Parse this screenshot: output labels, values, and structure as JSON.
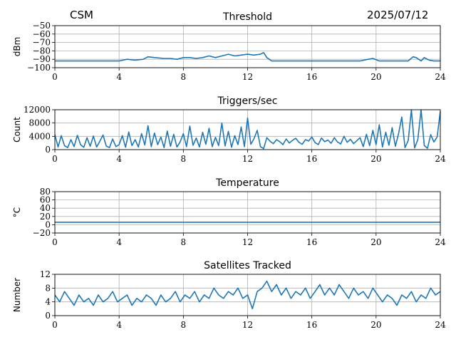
{
  "header": {
    "station": "CSM",
    "date": "2025/07/12"
  },
  "colors": {
    "series": "#1f77b4",
    "grid": "#b0b0b0",
    "axis": "#000000"
  },
  "chart_data": [
    {
      "type": "line",
      "title": "Threshold",
      "xlabel": "",
      "ylabel": "dBm",
      "xlim": [
        0,
        24
      ],
      "ylim": [
        -100,
        -50
      ],
      "xticks": [
        "0",
        "4",
        "8",
        "12",
        "16",
        "20",
        "24"
      ],
      "yticks": [
        "−50",
        "−60",
        "−70",
        "−80",
        "−90",
        "−100"
      ],
      "grid": true,
      "series": [
        {
          "x": [
            0,
            1,
            2,
            3,
            4,
            4.5,
            5,
            5.5,
            5.8,
            6.2,
            6.8,
            7.2,
            7.6,
            8,
            8.4,
            8.8,
            9.2,
            9.6,
            10,
            10.4,
            10.8,
            11.2,
            11.6,
            12,
            12.4,
            12.8,
            13.0,
            13.2,
            13.5,
            14,
            15,
            16,
            17,
            18,
            19,
            19.5,
            19.8,
            20.2,
            21,
            22,
            22.3,
            22.5,
            22.8,
            23,
            23.3,
            23.6,
            24
          ],
          "y": [
            -92,
            -92,
            -92,
            -92,
            -92,
            -90,
            -91,
            -90,
            -87,
            -88,
            -89,
            -89,
            -90,
            -88,
            -88,
            -89,
            -88,
            -86,
            -88,
            -86,
            -84,
            -86,
            -85,
            -84,
            -85,
            -84,
            -82,
            -88,
            -92,
            -92,
            -92,
            -92,
            -92,
            -92,
            -92,
            -90,
            -89,
            -92,
            -92,
            -92,
            -87,
            -88,
            -92,
            -88,
            -91,
            -92,
            -92
          ]
        }
      ]
    },
    {
      "type": "line",
      "title": "Triggers/sec",
      "xlabel": "",
      "ylabel": "Count",
      "xlim": [
        0,
        24
      ],
      "ylim": [
        0,
        12000
      ],
      "xticks": [
        "0",
        "4",
        "8",
        "12",
        "16",
        "20",
        "24"
      ],
      "yticks": [
        "12000",
        "8000",
        "4000",
        "0"
      ],
      "grid": true,
      "series": [
        {
          "x": [
            0,
            0.2,
            0.4,
            0.6,
            0.8,
            1.0,
            1.2,
            1.4,
            1.6,
            1.8,
            2.0,
            2.2,
            2.4,
            2.6,
            2.8,
            3.0,
            3.2,
            3.4,
            3.6,
            3.8,
            4.0,
            4.2,
            4.4,
            4.6,
            4.8,
            5.0,
            5.2,
            5.4,
            5.6,
            5.8,
            6.0,
            6.2,
            6.4,
            6.6,
            6.8,
            7.0,
            7.2,
            7.4,
            7.6,
            7.8,
            8.0,
            8.2,
            8.4,
            8.6,
            8.8,
            9.0,
            9.2,
            9.4,
            9.6,
            9.8,
            10.0,
            10.2,
            10.4,
            10.6,
            10.8,
            11.0,
            11.2,
            11.4,
            11.6,
            11.8,
            12.0,
            12.2,
            12.4,
            12.6,
            12.8,
            13.0,
            13.2,
            13.4,
            13.6,
            13.8,
            14.0,
            14.2,
            14.4,
            14.6,
            14.8,
            15.0,
            15.2,
            15.4,
            15.6,
            15.8,
            16.0,
            16.2,
            16.4,
            16.6,
            16.8,
            17.0,
            17.2,
            17.4,
            17.6,
            17.8,
            18.0,
            18.2,
            18.4,
            18.6,
            18.8,
            19.0,
            19.2,
            19.4,
            19.6,
            19.8,
            20.0,
            20.2,
            20.4,
            20.6,
            20.8,
            21.0,
            21.2,
            21.4,
            21.6,
            21.8,
            22.0,
            22.2,
            22.4,
            22.6,
            22.8,
            23.0,
            23.2,
            23.4,
            23.6,
            23.8,
            24.0
          ],
          "y": [
            4500,
            800,
            4200,
            1200,
            600,
            3000,
            900,
            4300,
            1500,
            700,
            3600,
            1000,
            4100,
            800,
            2500,
            4400,
            1100,
            600,
            3200,
            900,
            1500,
            4200,
            700,
            5300,
            1200,
            3000,
            800,
            4800,
            1400,
            7200,
            900,
            5000,
            1500,
            3800,
            600,
            5600,
            1000,
            4600,
            800,
            2300,
            4800,
            900,
            7100,
            1300,
            3500,
            800,
            5200,
            1600,
            6400,
            900,
            3700,
            1200,
            8000,
            1100,
            5500,
            700,
            4200,
            1500,
            6800,
            900,
            9500,
            1600,
            3300,
            5800,
            900,
            300,
            3600,
            2500,
            1800,
            3000,
            2400,
            1500,
            3200,
            2000,
            2800,
            3400,
            2200,
            1600,
            3000,
            2600,
            3800,
            2100,
            1500,
            3500,
            2400,
            2900,
            1900,
            3600,
            2300,
            1700,
            4000,
            2200,
            3100,
            1800,
            2700,
            3600,
            900,
            4600,
            1200,
            5800,
            1500,
            7500,
            800,
            5200,
            1300,
            6600,
            1000,
            4800,
            9800,
            600,
            2700,
            12000,
            500,
            3000,
            12000,
            1200,
            400,
            4500,
            2300,
            3800,
            11500
          ]
        }
      ]
    },
    {
      "type": "line",
      "title": "Temperature",
      "xlabel": "",
      "ylabel": "°C",
      "xlim": [
        0,
        24
      ],
      "ylim": [
        -20,
        80
      ],
      "xticks": [
        "0",
        "4",
        "8",
        "12",
        "16",
        "20",
        "24"
      ],
      "yticks": [
        "80",
        "60",
        "40",
        "20",
        "0",
        "−20"
      ],
      "grid": true,
      "series": [
        {
          "x": [
            0,
            24
          ],
          "y": [
            6,
            6
          ]
        }
      ]
    },
    {
      "type": "line",
      "title": "Satellites Tracked",
      "xlabel": "",
      "ylabel": "Number",
      "xlim": [
        0,
        24
      ],
      "ylim": [
        0,
        12
      ],
      "xticks": [
        "0",
        "4",
        "8",
        "12",
        "16",
        "20",
        "24"
      ],
      "yticks": [
        "12",
        "8",
        "4",
        "0"
      ],
      "grid": true,
      "series": [
        {
          "x": [
            0,
            0.3,
            0.6,
            0.9,
            1.2,
            1.5,
            1.8,
            2.1,
            2.4,
            2.7,
            3.0,
            3.3,
            3.6,
            3.9,
            4.2,
            4.5,
            4.8,
            5.1,
            5.4,
            5.7,
            6.0,
            6.3,
            6.6,
            6.9,
            7.2,
            7.5,
            7.8,
            8.1,
            8.4,
            8.7,
            9.0,
            9.3,
            9.6,
            9.9,
            10.2,
            10.5,
            10.8,
            11.1,
            11.4,
            11.7,
            12.0,
            12.3,
            12.6,
            12.9,
            13.2,
            13.5,
            13.8,
            14.1,
            14.4,
            14.7,
            15.0,
            15.3,
            15.6,
            15.9,
            16.2,
            16.5,
            16.8,
            17.1,
            17.4,
            17.7,
            18.0,
            18.3,
            18.6,
            18.9,
            19.2,
            19.5,
            19.8,
            20.1,
            20.4,
            20.7,
            21.0,
            21.3,
            21.6,
            21.9,
            22.2,
            22.5,
            22.8,
            23.1,
            23.4,
            23.7,
            24.0
          ],
          "y": [
            6,
            4,
            7,
            5,
            3,
            6,
            4,
            5,
            3,
            6,
            4,
            5,
            7,
            4,
            5,
            6,
            3,
            5,
            4,
            6,
            5,
            3,
            6,
            4,
            5,
            7,
            4,
            6,
            5,
            7,
            4,
            6,
            5,
            8,
            6,
            5,
            7,
            6,
            8,
            5,
            6,
            2,
            7,
            8,
            10,
            7,
            9,
            6,
            8,
            5,
            7,
            6,
            8,
            5,
            7,
            9,
            6,
            8,
            6,
            9,
            7,
            5,
            8,
            6,
            7,
            5,
            8,
            6,
            4,
            6,
            5,
            3,
            6,
            5,
            7,
            4,
            6,
            5,
            8,
            6,
            7
          ]
        }
      ]
    }
  ]
}
